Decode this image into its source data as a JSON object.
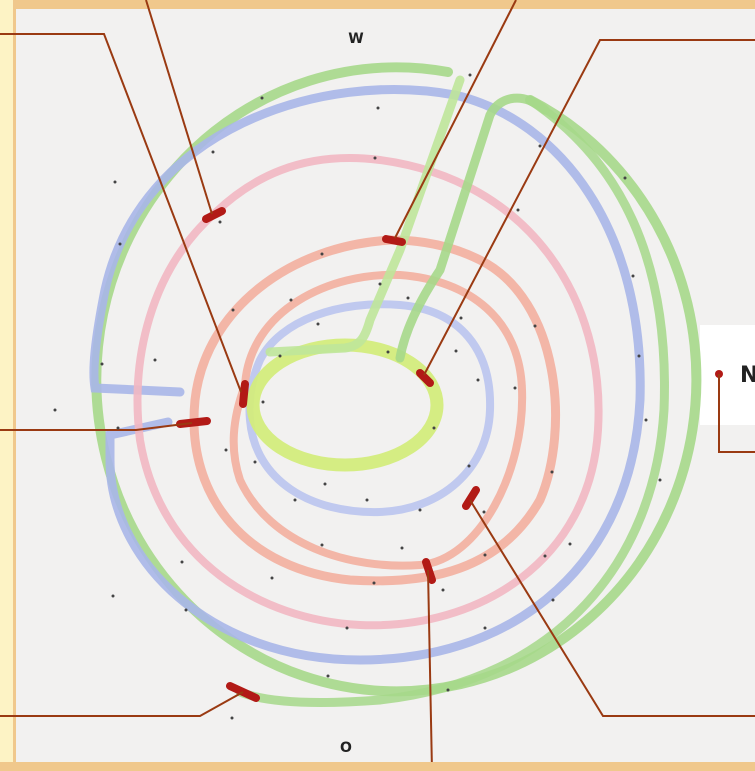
{
  "diagram": {
    "compass": {
      "west": "W",
      "north": "N",
      "south": "O"
    },
    "ring_colors": {
      "green": "#a6d88a",
      "blue": "#a9b6e8",
      "pink": "#f2b7c2",
      "salmon": "#f3ab9a",
      "yellow_green": "#d3ec7c",
      "marker": "#b21a16",
      "callout_line": "#9a3a12",
      "paper": "#f2f1f0"
    }
  }
}
